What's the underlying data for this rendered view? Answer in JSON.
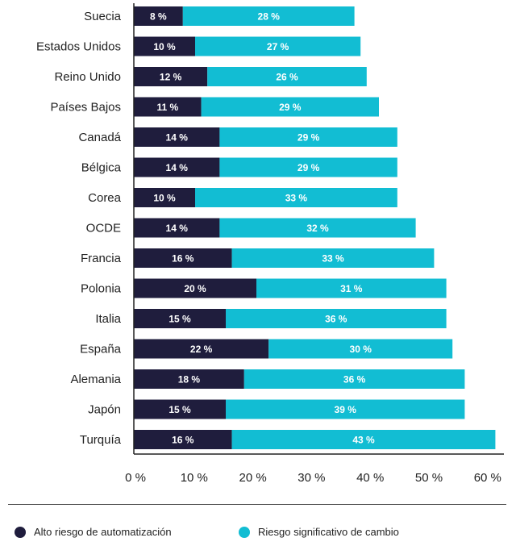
{
  "chart_data": {
    "type": "bar",
    "orientation": "horizontal",
    "stacked": true,
    "categories": [
      "Suecia",
      "Estados Unidos",
      "Reino Unido",
      "Países Bajos",
      "Canadá",
      "Bélgica",
      "Corea",
      "OCDE",
      "Francia",
      "Polonia",
      "Italia",
      "España",
      "Alemania",
      "Japón",
      "Turquía"
    ],
    "series": [
      {
        "name": "Alto riesgo de automatización",
        "color": "#1f1d3d",
        "values": [
          8,
          10,
          12,
          11,
          14,
          14,
          10,
          14,
          16,
          20,
          15,
          22,
          18,
          15,
          16
        ]
      },
      {
        "name": "Riesgo significativo de cambio",
        "color": "#12bdd3",
        "values": [
          28,
          27,
          26,
          29,
          29,
          29,
          33,
          32,
          33,
          31,
          36,
          30,
          36,
          39,
          43
        ]
      }
    ],
    "xticks": [
      "0 %",
      "10 %",
      "20 %",
      "30 %",
      "40 %",
      "50 %",
      "60 %"
    ],
    "xlim": [
      0,
      60
    ],
    "value_suffix": " %",
    "legend": "bottom",
    "grid": false
  }
}
